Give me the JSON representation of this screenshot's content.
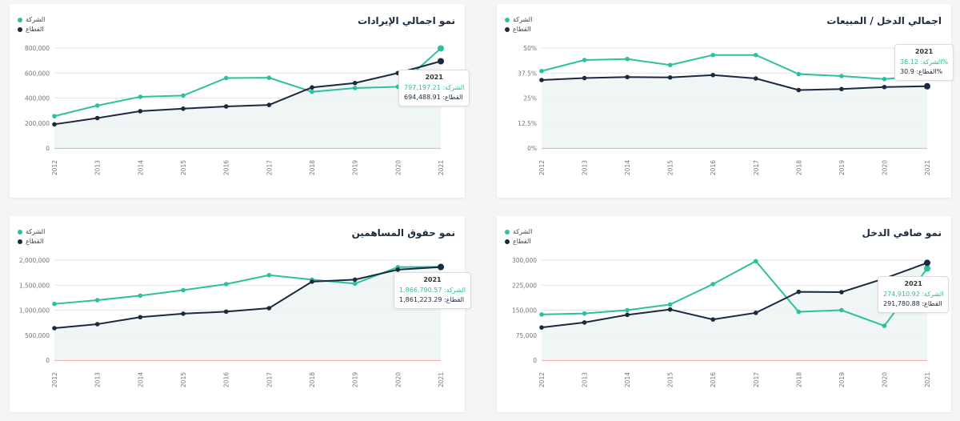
{
  "legend": {
    "company": "الشركة",
    "sector": "القطاع"
  },
  "colors": {
    "company": "#2dc09c",
    "sector": "#1b2a3e",
    "zero_line": "#e06666",
    "grid": "#e5e5e5",
    "area": "#eef4f4"
  },
  "chart_data": [
    {
      "type": "line",
      "title": "نمو اجمالي الإيرادات",
      "x": [
        "2012",
        "2013",
        "2014",
        "2015",
        "2016",
        "2017",
        "2018",
        "2019",
        "2020",
        "2021"
      ],
      "ylim": [
        0,
        800000
      ],
      "yticks": [
        "0",
        "200,000",
        "400,000",
        "600,000",
        "800,000"
      ],
      "series": [
        {
          "name": "الشركة",
          "values": [
            255000,
            340000,
            410000,
            420000,
            560000,
            562000,
            450000,
            480000,
            490000,
            797197.21
          ]
        },
        {
          "name": "القطاع",
          "values": [
            190000,
            240000,
            295000,
            315000,
            333000,
            345000,
            485000,
            520000,
            600000,
            694488.91
          ]
        }
      ],
      "tooltip": {
        "year": "2021",
        "company": "الشركة: 797,197.21",
        "sector": "القطاع: 694,488.91"
      }
    },
    {
      "type": "line",
      "title": "اجمالي الدخل / المبيعات",
      "x": [
        "2012",
        "2013",
        "2014",
        "2015",
        "2016",
        "2017",
        "2018",
        "2019",
        "2020",
        "2021"
      ],
      "ylim": [
        0,
        50
      ],
      "yticks": [
        "0%",
        "12.5%",
        "25%",
        "37.5%",
        "50%"
      ],
      "series": [
        {
          "name": "الشركة",
          "values": [
            38.5,
            44,
            44.5,
            41.5,
            46.5,
            46.5,
            37,
            36,
            34.5,
            36.12
          ]
        },
        {
          "name": "القطاع",
          "values": [
            34,
            35,
            35.5,
            35.3,
            36.5,
            34.8,
            29,
            29.5,
            30.5,
            30.9
          ]
        }
      ],
      "tooltip": {
        "year": "2021",
        "company": "الشركة: 36.12%",
        "sector": "القطاع: 30.9%"
      }
    },
    {
      "type": "line",
      "title": "نمو حقوق المساهمين",
      "x": [
        "2012",
        "2013",
        "2014",
        "2015",
        "2016",
        "2017",
        "2018",
        "2019",
        "2020",
        "2021"
      ],
      "ylim": [
        0,
        2000000
      ],
      "yticks": [
        "0",
        "500,000",
        "1,000,000",
        "1,500,000",
        "2,000,000"
      ],
      "series": [
        {
          "name": "الشركة",
          "values": [
            1125000,
            1200000,
            1290000,
            1400000,
            1520000,
            1700000,
            1610000,
            1530000,
            1860000,
            1866790.57
          ]
        },
        {
          "name": "القطاع",
          "values": [
            640000,
            720000,
            860000,
            930000,
            970000,
            1040000,
            1570000,
            1610000,
            1810000,
            1861223.29
          ]
        }
      ],
      "tooltip": {
        "year": "2021",
        "company": "الشركة: 1,866,790.57",
        "sector": "القطاع: 1,861,223.29"
      }
    },
    {
      "type": "line",
      "title": "نمو صافي الدخل",
      "x": [
        "2012",
        "2013",
        "2014",
        "2015",
        "2016",
        "2017",
        "2018",
        "2019",
        "2020",
        "2021"
      ],
      "ylim": [
        0,
        300000
      ],
      "yticks": [
        "0",
        "75,000",
        "150,000",
        "225,000",
        "300,000"
      ],
      "series": [
        {
          "name": "الشركة",
          "values": [
            137000,
            140000,
            150000,
            167000,
            228000,
            297000,
            145000,
            150000,
            103000,
            274910.92
          ]
        },
        {
          "name": "القطاع",
          "values": [
            98000,
            113000,
            136000,
            152000,
            122000,
            142000,
            205000,
            204000,
            245000,
            291780.88
          ]
        }
      ],
      "tooltip": {
        "year": "2021",
        "company": "الشركة: 274,910.92",
        "sector": "القطاع: 291,780.88"
      }
    }
  ]
}
